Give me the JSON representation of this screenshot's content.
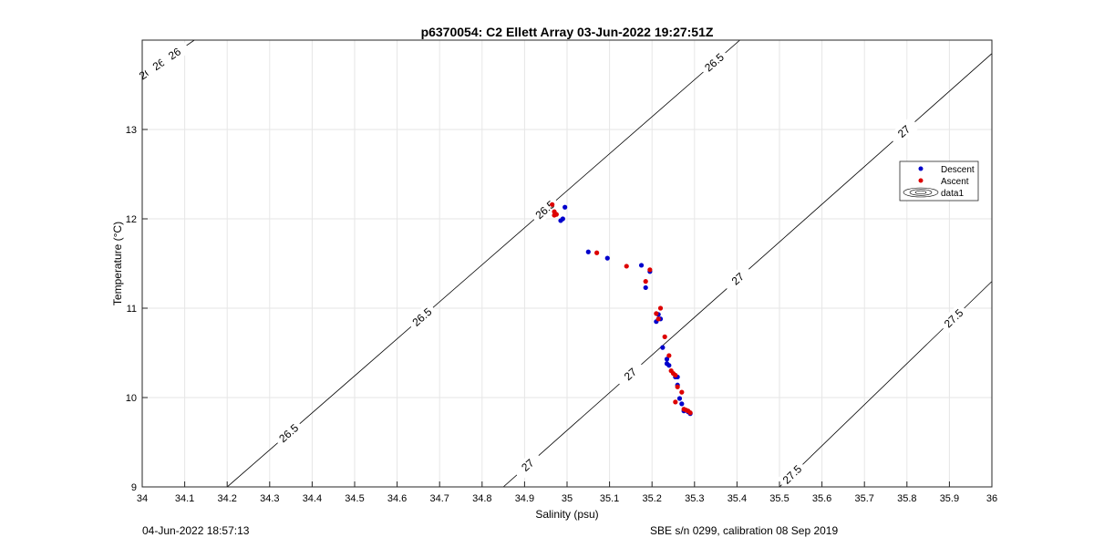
{
  "chart_data": {
    "type": "scatter",
    "title": "p6370054: C2 Ellett Array 03-Jun-2022 19:27:51Z",
    "xlabel": "Salinity (psu)",
    "ylabel": "Temperature (°C)",
    "xlim": [
      34,
      36
    ],
    "ylim": [
      9,
      14
    ],
    "x_ticks": [
      "34",
      "34.1",
      "34.2",
      "34.3",
      "34.4",
      "34.5",
      "34.6",
      "34.7",
      "34.8",
      "34.9",
      "35",
      "35.1",
      "35.2",
      "35.3",
      "35.4",
      "35.5",
      "35.6",
      "35.7",
      "35.8",
      "35.9",
      "36"
    ],
    "y_ticks": [
      "9",
      "10",
      "11",
      "12",
      "13"
    ],
    "grid": true,
    "legend_position": "right",
    "legend": [
      "Descent",
      "Ascent",
      "data1"
    ],
    "series": [
      {
        "name": "Descent",
        "color": "#0000cc",
        "points": [
          [
            34.995,
            12.13
          ],
          [
            34.99,
            12.0
          ],
          [
            34.985,
            11.98
          ],
          [
            35.05,
            11.63
          ],
          [
            35.095,
            11.56
          ],
          [
            35.175,
            11.48
          ],
          [
            35.195,
            11.41
          ],
          [
            35.185,
            11.23
          ],
          [
            35.215,
            10.93
          ],
          [
            35.22,
            10.88
          ],
          [
            35.21,
            10.85
          ],
          [
            35.225,
            10.56
          ],
          [
            35.235,
            10.43
          ],
          [
            35.235,
            10.38
          ],
          [
            35.24,
            10.36
          ],
          [
            35.255,
            10.23
          ],
          [
            35.26,
            10.23
          ],
          [
            35.26,
            10.14
          ],
          [
            35.265,
            9.99
          ],
          [
            35.27,
            9.93
          ],
          [
            35.275,
            9.85
          ],
          [
            35.285,
            9.84
          ],
          [
            35.29,
            9.82
          ]
        ]
      },
      {
        "name": "Ascent",
        "color": "#dd0000",
        "points": [
          [
            34.965,
            12.16
          ],
          [
            34.97,
            12.08
          ],
          [
            34.975,
            12.05
          ],
          [
            34.97,
            12.04
          ],
          [
            35.07,
            11.62
          ],
          [
            35.14,
            11.47
          ],
          [
            35.195,
            11.43
          ],
          [
            35.185,
            11.3
          ],
          [
            35.22,
            11.0
          ],
          [
            35.21,
            10.94
          ],
          [
            35.215,
            10.88
          ],
          [
            35.23,
            10.68
          ],
          [
            35.24,
            10.47
          ],
          [
            35.245,
            10.3
          ],
          [
            35.25,
            10.27
          ],
          [
            35.255,
            10.25
          ],
          [
            35.26,
            10.12
          ],
          [
            35.255,
            9.95
          ],
          [
            35.27,
            10.06
          ],
          [
            35.275,
            9.87
          ],
          [
            35.28,
            9.86
          ],
          [
            35.285,
            9.85
          ],
          [
            35.29,
            9.83
          ]
        ]
      }
    ],
    "isopycnals": [
      {
        "value": 26,
        "labels": [
          "26",
          "26",
          "26"
        ]
      },
      {
        "value": 26.5,
        "labels": [
          "26.5",
          "26.5",
          "26.5",
          "26.5"
        ]
      },
      {
        "value": 27,
        "labels": [
          "27",
          "27",
          "27",
          "27"
        ]
      },
      {
        "value": 27.5,
        "labels": [
          "27.5",
          "27.5"
        ]
      }
    ]
  },
  "footer": {
    "left": "04-Jun-2022 18:57:13",
    "right": "SBE s/n 0299, calibration 08 Sep 2019"
  }
}
